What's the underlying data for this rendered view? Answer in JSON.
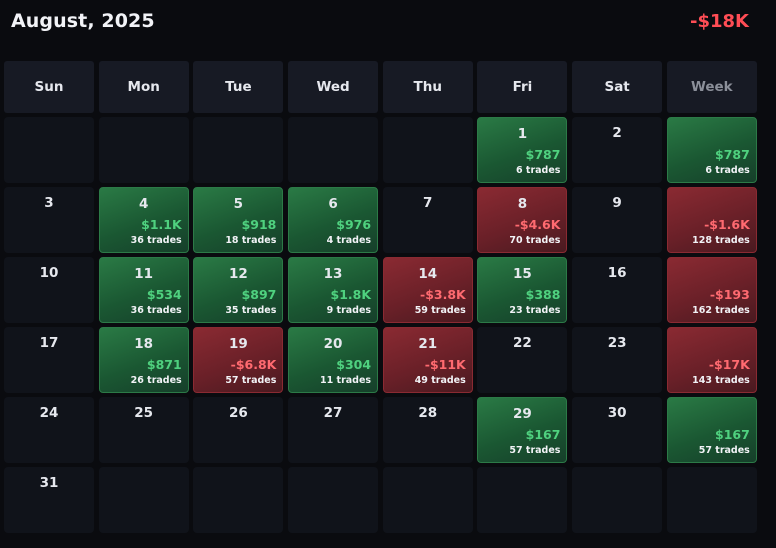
{
  "header": {
    "title": "August, 2025",
    "total": "-$18K"
  },
  "colors": {
    "positive": "#4fd17f",
    "negative": "#ff4d55",
    "background": "#0a0b0f",
    "cell": "#10131a"
  },
  "weekdays": [
    "Sun",
    "Mon",
    "Tue",
    "Wed",
    "Thu",
    "Fri",
    "Sat"
  ],
  "week_label": "Week",
  "weeks": [
    {
      "days": [
        {
          "day": "",
          "pnl": "",
          "trades": "",
          "state": "empty"
        },
        {
          "day": "",
          "pnl": "",
          "trades": "",
          "state": "empty"
        },
        {
          "day": "",
          "pnl": "",
          "trades": "",
          "state": "empty"
        },
        {
          "day": "",
          "pnl": "",
          "trades": "",
          "state": "empty"
        },
        {
          "day": "",
          "pnl": "",
          "trades": "",
          "state": "empty"
        },
        {
          "day": "1",
          "pnl": "$787",
          "trades": "6 trades",
          "state": "pos"
        },
        {
          "day": "2",
          "pnl": "",
          "trades": "",
          "state": "empty"
        }
      ],
      "summary": {
        "pnl": "$787",
        "trades": "6 trades",
        "state": "pos"
      }
    },
    {
      "days": [
        {
          "day": "3",
          "pnl": "",
          "trades": "",
          "state": "empty"
        },
        {
          "day": "4",
          "pnl": "$1.1K",
          "trades": "36 trades",
          "state": "pos"
        },
        {
          "day": "5",
          "pnl": "$918",
          "trades": "18 trades",
          "state": "pos"
        },
        {
          "day": "6",
          "pnl": "$976",
          "trades": "4 trades",
          "state": "pos"
        },
        {
          "day": "7",
          "pnl": "",
          "trades": "",
          "state": "empty"
        },
        {
          "day": "8",
          "pnl": "-$4.6K",
          "trades": "70 trades",
          "state": "neg"
        },
        {
          "day": "9",
          "pnl": "",
          "trades": "",
          "state": "empty"
        }
      ],
      "summary": {
        "pnl": "-$1.6K",
        "trades": "128 trades",
        "state": "neg"
      }
    },
    {
      "days": [
        {
          "day": "10",
          "pnl": "",
          "trades": "",
          "state": "empty"
        },
        {
          "day": "11",
          "pnl": "$534",
          "trades": "36 trades",
          "state": "pos"
        },
        {
          "day": "12",
          "pnl": "$897",
          "trades": "35 trades",
          "state": "pos"
        },
        {
          "day": "13",
          "pnl": "$1.8K",
          "trades": "9 trades",
          "state": "pos"
        },
        {
          "day": "14",
          "pnl": "-$3.8K",
          "trades": "59 trades",
          "state": "neg"
        },
        {
          "day": "15",
          "pnl": "$388",
          "trades": "23 trades",
          "state": "pos"
        },
        {
          "day": "16",
          "pnl": "",
          "trades": "",
          "state": "empty"
        }
      ],
      "summary": {
        "pnl": "-$193",
        "trades": "162 trades",
        "state": "neg"
      }
    },
    {
      "days": [
        {
          "day": "17",
          "pnl": "",
          "trades": "",
          "state": "empty"
        },
        {
          "day": "18",
          "pnl": "$871",
          "trades": "26 trades",
          "state": "pos"
        },
        {
          "day": "19",
          "pnl": "-$6.8K",
          "trades": "57 trades",
          "state": "neg"
        },
        {
          "day": "20",
          "pnl": "$304",
          "trades": "11 trades",
          "state": "pos"
        },
        {
          "day": "21",
          "pnl": "-$11K",
          "trades": "49 trades",
          "state": "neg"
        },
        {
          "day": "22",
          "pnl": "",
          "trades": "",
          "state": "empty"
        },
        {
          "day": "23",
          "pnl": "",
          "trades": "",
          "state": "empty"
        }
      ],
      "summary": {
        "pnl": "-$17K",
        "trades": "143 trades",
        "state": "neg"
      }
    },
    {
      "days": [
        {
          "day": "24",
          "pnl": "",
          "trades": "",
          "state": "empty"
        },
        {
          "day": "25",
          "pnl": "",
          "trades": "",
          "state": "empty"
        },
        {
          "day": "26",
          "pnl": "",
          "trades": "",
          "state": "empty"
        },
        {
          "day": "27",
          "pnl": "",
          "trades": "",
          "state": "empty"
        },
        {
          "day": "28",
          "pnl": "",
          "trades": "",
          "state": "empty"
        },
        {
          "day": "29",
          "pnl": "$167",
          "trades": "57 trades",
          "state": "pos"
        },
        {
          "day": "30",
          "pnl": "",
          "trades": "",
          "state": "empty"
        }
      ],
      "summary": {
        "pnl": "$167",
        "trades": "57 trades",
        "state": "pos"
      }
    },
    {
      "days": [
        {
          "day": "31",
          "pnl": "",
          "trades": "",
          "state": "empty"
        },
        {
          "day": "",
          "pnl": "",
          "trades": "",
          "state": "empty"
        },
        {
          "day": "",
          "pnl": "",
          "trades": "",
          "state": "empty"
        },
        {
          "day": "",
          "pnl": "",
          "trades": "",
          "state": "empty"
        },
        {
          "day": "",
          "pnl": "",
          "trades": "",
          "state": "empty"
        },
        {
          "day": "",
          "pnl": "",
          "trades": "",
          "state": "empty"
        },
        {
          "day": "",
          "pnl": "",
          "trades": "",
          "state": "empty"
        }
      ],
      "summary": {
        "pnl": "",
        "trades": "",
        "state": "empty"
      }
    }
  ]
}
